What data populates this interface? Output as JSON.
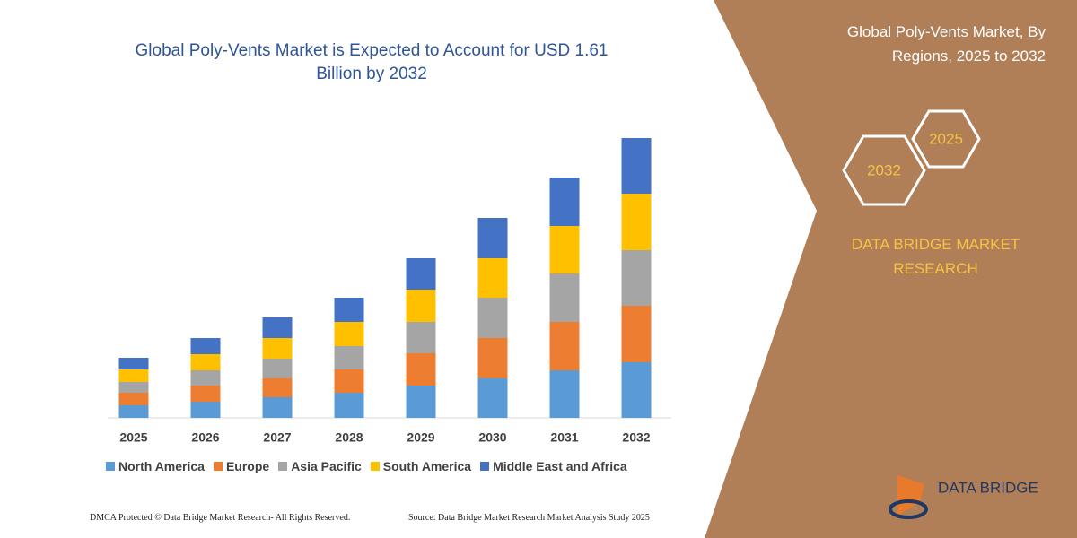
{
  "chart_data": {
    "type": "stacked_bar",
    "title": "Global Poly-Vents Market is Expected to Account for USD 1.61 Billion by 2032",
    "categories": [
      "2025",
      "2026",
      "2027",
      "2028",
      "2029",
      "2030",
      "2031",
      "2032"
    ],
    "series": [
      {
        "name": "North America",
        "color": "#5b9bd5",
        "values": [
          14,
          18,
          23,
          28,
          36,
          44,
          53,
          62
        ]
      },
      {
        "name": "Europe",
        "color": "#ed7d31",
        "values": [
          14,
          18,
          21,
          26,
          36,
          45,
          54,
          63
        ]
      },
      {
        "name": "Asia Pacific",
        "color": "#a5a5a5",
        "values": [
          12,
          17,
          22,
          26,
          35,
          45,
          54,
          62
        ]
      },
      {
        "name": "South America",
        "color": "#ffc000",
        "values": [
          14,
          18,
          23,
          27,
          36,
          44,
          53,
          63
        ]
      },
      {
        "name": "Middle East and Africa",
        "color": "#4472c4",
        "values": [
          13,
          18,
          23,
          27,
          35,
          45,
          54,
          62
        ]
      }
    ]
  },
  "panel": {
    "title": "Global Poly-Vents Market, By Regions, 2025 to 2032",
    "hex_left": "2032",
    "hex_right": "2025",
    "brand": "DATA BRIDGE MARKET RESEARCH",
    "logo": "DATA BRIDGE"
  },
  "footer": {
    "left": "DMCA Protected © Data Bridge Market Research- All Rights Reserved.",
    "right": "Source: Data Bridge Market Research Market Analysis Study 2025"
  }
}
